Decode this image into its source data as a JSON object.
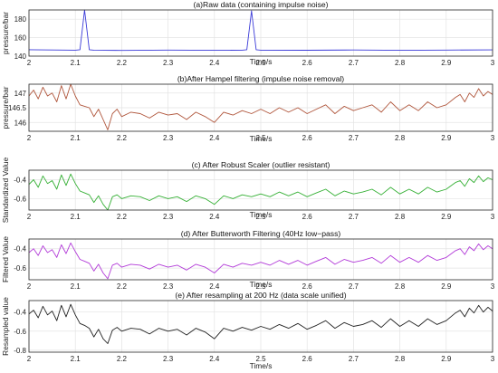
{
  "chart_data": [
    {
      "type": "line",
      "title": "(a)Raw data (containing impulse noise)",
      "xlabel": "Time/s",
      "ylabel": "pressure/bar",
      "xlim": [
        2,
        3
      ],
      "ylim": [
        140,
        190
      ],
      "xticks": [
        "2",
        "2.1",
        "2.2",
        "2.3",
        "2.4",
        "2.5",
        "2.6",
        "2.7",
        "2.8",
        "2.9",
        "3"
      ],
      "yticks": [
        "140",
        "160",
        "180"
      ],
      "grid": true,
      "color": "#3a3ad8",
      "series": [
        {
          "x": [
            2.0,
            2.1,
            2.11,
            2.12,
            2.13,
            2.14,
            2.2,
            2.3,
            2.4,
            2.46,
            2.47,
            2.48,
            2.49,
            2.5,
            2.6,
            2.7,
            2.8,
            2.9,
            3.0
          ],
          "y": [
            147,
            146.5,
            147,
            190,
            147,
            146.5,
            146.2,
            146.6,
            146.3,
            146.5,
            147,
            189,
            147,
            146.5,
            146.4,
            146.7,
            146.3,
            146.6,
            146.8
          ]
        }
      ]
    },
    {
      "type": "line",
      "title": "(b)After Hampel filtering (impulse noise removal)",
      "xlabel": "Time/s",
      "ylabel": "pressure/bar",
      "xlim": [
        2,
        3
      ],
      "ylim": [
        145.7,
        147.3
      ],
      "xticks": [
        "2",
        "2.1",
        "2.2",
        "2.3",
        "2.4",
        "2.5",
        "2.6",
        "2.7",
        "2.8",
        "2.9",
        "3"
      ],
      "yticks": [
        "146",
        "146.5",
        "147"
      ],
      "grid": true,
      "color": "#b0563c",
      "series": [
        {
          "x": [
            2.0,
            2.01,
            2.02,
            2.03,
            2.04,
            2.05,
            2.06,
            2.07,
            2.08,
            2.09,
            2.1,
            2.11,
            2.12,
            2.13,
            2.14,
            2.15,
            2.16,
            2.17,
            2.18,
            2.19,
            2.2,
            2.22,
            2.24,
            2.26,
            2.28,
            2.3,
            2.32,
            2.34,
            2.36,
            2.38,
            2.4,
            2.42,
            2.44,
            2.46,
            2.48,
            2.5,
            2.52,
            2.54,
            2.56,
            2.58,
            2.6,
            2.62,
            2.64,
            2.66,
            2.68,
            2.7,
            2.72,
            2.74,
            2.76,
            2.78,
            2.8,
            2.82,
            2.84,
            2.86,
            2.88,
            2.9,
            2.92,
            2.93,
            2.94,
            2.95,
            2.96,
            2.97,
            2.98,
            2.99,
            3.0
          ],
          "y": [
            146.9,
            147.1,
            146.8,
            147.2,
            146.9,
            147.0,
            146.7,
            147.25,
            146.8,
            147.3,
            146.9,
            146.6,
            146.55,
            146.5,
            146.2,
            146.45,
            146.1,
            145.75,
            146.3,
            146.45,
            146.2,
            146.35,
            146.3,
            146.15,
            146.35,
            146.25,
            146.3,
            146.1,
            146.35,
            146.2,
            146.0,
            146.35,
            146.25,
            146.4,
            146.3,
            146.45,
            146.3,
            146.5,
            146.35,
            146.5,
            146.3,
            146.45,
            146.6,
            146.3,
            146.55,
            146.4,
            146.5,
            146.6,
            146.35,
            146.7,
            146.4,
            146.6,
            146.4,
            146.7,
            146.5,
            146.6,
            146.85,
            146.95,
            146.7,
            147.0,
            146.85,
            147.15,
            146.9,
            147.05,
            146.95
          ]
        }
      ]
    },
    {
      "type": "line",
      "title": "(c) After Robust Scaler (outlier resistant)",
      "xlabel": "Time/s",
      "ylabel": "Standardized Value",
      "xlim": [
        2,
        3
      ],
      "ylim": [
        -0.72,
        -0.3
      ],
      "xticks": [
        "2",
        "2.1",
        "2.2",
        "2.3",
        "2.4",
        "2.5",
        "2.6",
        "2.7",
        "2.8",
        "2.9",
        "3"
      ],
      "yticks": [
        "-0.6",
        "-0.4"
      ],
      "grid": true,
      "color": "#35b035",
      "series": [
        {
          "x": [
            2.0,
            2.01,
            2.02,
            2.03,
            2.04,
            2.05,
            2.06,
            2.07,
            2.08,
            2.09,
            2.1,
            2.11,
            2.12,
            2.13,
            2.14,
            2.15,
            2.16,
            2.17,
            2.18,
            2.19,
            2.2,
            2.22,
            2.24,
            2.26,
            2.28,
            2.3,
            2.32,
            2.34,
            2.36,
            2.38,
            2.4,
            2.42,
            2.44,
            2.46,
            2.48,
            2.5,
            2.52,
            2.54,
            2.56,
            2.58,
            2.6,
            2.62,
            2.64,
            2.66,
            2.68,
            2.7,
            2.72,
            2.74,
            2.76,
            2.78,
            2.8,
            2.82,
            2.84,
            2.86,
            2.88,
            2.9,
            2.92,
            2.93,
            2.94,
            2.95,
            2.96,
            2.97,
            2.98,
            2.99,
            3.0
          ],
          "y": [
            -0.45,
            -0.4,
            -0.48,
            -0.36,
            -0.44,
            -0.41,
            -0.5,
            -0.35,
            -0.46,
            -0.34,
            -0.44,
            -0.52,
            -0.54,
            -0.56,
            -0.64,
            -0.57,
            -0.66,
            -0.72,
            -0.58,
            -0.56,
            -0.6,
            -0.57,
            -0.58,
            -0.62,
            -0.57,
            -0.6,
            -0.58,
            -0.63,
            -0.57,
            -0.6,
            -0.66,
            -0.57,
            -0.6,
            -0.56,
            -0.58,
            -0.55,
            -0.58,
            -0.53,
            -0.57,
            -0.53,
            -0.58,
            -0.54,
            -0.5,
            -0.57,
            -0.52,
            -0.55,
            -0.53,
            -0.5,
            -0.56,
            -0.48,
            -0.55,
            -0.5,
            -0.55,
            -0.48,
            -0.53,
            -0.5,
            -0.43,
            -0.41,
            -0.47,
            -0.39,
            -0.43,
            -0.36,
            -0.42,
            -0.38,
            -0.4
          ]
        }
      ]
    },
    {
      "type": "line",
      "title": "(d) After Butterworth Filtering (40Hz low−pass)",
      "xlabel": "Time/s",
      "ylabel": "Filtered Value",
      "xlim": [
        2,
        3
      ],
      "ylim": [
        -0.72,
        -0.3
      ],
      "xticks": [
        "2",
        "2.1",
        "2.2",
        "2.3",
        "2.4",
        "2.5",
        "2.6",
        "2.7",
        "2.8",
        "2.9",
        "3"
      ],
      "yticks": [
        "-0.6",
        "-0.4"
      ],
      "grid": true,
      "color": "#b23bd8",
      "series": [
        {
          "x": [
            2.0,
            2.01,
            2.02,
            2.03,
            2.04,
            2.05,
            2.06,
            2.07,
            2.08,
            2.09,
            2.1,
            2.11,
            2.12,
            2.13,
            2.14,
            2.15,
            2.16,
            2.17,
            2.18,
            2.19,
            2.2,
            2.22,
            2.24,
            2.26,
            2.28,
            2.3,
            2.32,
            2.34,
            2.36,
            2.38,
            2.4,
            2.42,
            2.44,
            2.46,
            2.48,
            2.5,
            2.52,
            2.54,
            2.56,
            2.58,
            2.6,
            2.62,
            2.64,
            2.66,
            2.68,
            2.7,
            2.72,
            2.74,
            2.76,
            2.78,
            2.8,
            2.82,
            2.84,
            2.86,
            2.88,
            2.9,
            2.92,
            2.93,
            2.94,
            2.95,
            2.96,
            2.97,
            2.98,
            2.99,
            3.0
          ],
          "y": [
            -0.44,
            -0.4,
            -0.47,
            -0.37,
            -0.44,
            -0.41,
            -0.49,
            -0.36,
            -0.45,
            -0.34,
            -0.43,
            -0.51,
            -0.53,
            -0.55,
            -0.63,
            -0.56,
            -0.65,
            -0.71,
            -0.57,
            -0.55,
            -0.59,
            -0.56,
            -0.57,
            -0.61,
            -0.56,
            -0.59,
            -0.57,
            -0.62,
            -0.56,
            -0.59,
            -0.65,
            -0.56,
            -0.59,
            -0.55,
            -0.57,
            -0.54,
            -0.57,
            -0.52,
            -0.56,
            -0.52,
            -0.57,
            -0.53,
            -0.49,
            -0.56,
            -0.51,
            -0.54,
            -0.52,
            -0.49,
            -0.55,
            -0.47,
            -0.54,
            -0.49,
            -0.54,
            -0.47,
            -0.52,
            -0.49,
            -0.42,
            -0.4,
            -0.46,
            -0.38,
            -0.42,
            -0.35,
            -0.41,
            -0.37,
            -0.4
          ]
        }
      ]
    },
    {
      "type": "line",
      "title": "(e) After resampling at 200 Hz (data scale unified)",
      "xlabel": "Time/s",
      "ylabel": "Resampled value",
      "xlim": [
        2,
        3
      ],
      "ylim": [
        -0.82,
        -0.28
      ],
      "xticks": [
        "2",
        "2.1",
        "2.2",
        "2.3",
        "2.4",
        "2.5",
        "2.6",
        "2.7",
        "2.8",
        "2.9",
        "3"
      ],
      "yticks": [
        "-0.8",
        "-0.6",
        "-0.4"
      ],
      "grid": true,
      "color": "#222222",
      "series": [
        {
          "x": [
            2.0,
            2.01,
            2.02,
            2.03,
            2.04,
            2.05,
            2.06,
            2.07,
            2.08,
            2.09,
            2.1,
            2.11,
            2.12,
            2.13,
            2.14,
            2.15,
            2.16,
            2.17,
            2.18,
            2.19,
            2.2,
            2.22,
            2.24,
            2.26,
            2.28,
            2.3,
            2.32,
            2.34,
            2.36,
            2.38,
            2.4,
            2.42,
            2.44,
            2.46,
            2.48,
            2.5,
            2.52,
            2.54,
            2.56,
            2.58,
            2.6,
            2.62,
            2.64,
            2.66,
            2.68,
            2.7,
            2.72,
            2.74,
            2.76,
            2.78,
            2.8,
            2.82,
            2.84,
            2.86,
            2.88,
            2.9,
            2.92,
            2.93,
            2.94,
            2.95,
            2.96,
            2.97,
            2.98,
            2.99,
            3.0
          ],
          "y": [
            -0.42,
            -0.38,
            -0.46,
            -0.34,
            -0.43,
            -0.39,
            -0.49,
            -0.33,
            -0.45,
            -0.32,
            -0.43,
            -0.52,
            -0.54,
            -0.57,
            -0.66,
            -0.58,
            -0.68,
            -0.73,
            -0.59,
            -0.56,
            -0.6,
            -0.57,
            -0.58,
            -0.63,
            -0.57,
            -0.6,
            -0.58,
            -0.64,
            -0.57,
            -0.61,
            -0.68,
            -0.57,
            -0.6,
            -0.56,
            -0.59,
            -0.55,
            -0.58,
            -0.53,
            -0.57,
            -0.52,
            -0.58,
            -0.54,
            -0.49,
            -0.57,
            -0.51,
            -0.55,
            -0.53,
            -0.49,
            -0.56,
            -0.47,
            -0.55,
            -0.49,
            -0.55,
            -0.47,
            -0.53,
            -0.49,
            -0.41,
            -0.38,
            -0.45,
            -0.36,
            -0.41,
            -0.33,
            -0.4,
            -0.35,
            -0.39
          ]
        }
      ]
    }
  ]
}
